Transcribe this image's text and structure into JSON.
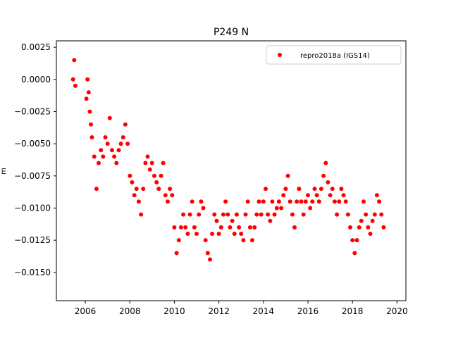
{
  "chart_data": {
    "type": "scatter",
    "title": "P249 N",
    "xlabel": "",
    "ylabel": "m",
    "xlim": [
      2004.7,
      2020.4
    ],
    "ylim": [
      -0.0172,
      0.003
    ],
    "x_ticks": [
      2006,
      2008,
      2010,
      2012,
      2014,
      2016,
      2018,
      2020
    ],
    "x_tick_labels": [
      "2006",
      "2008",
      "2010",
      "2012",
      "2014",
      "2016",
      "2018",
      "2020"
    ],
    "y_ticks": [
      0.0025,
      0.0,
      -0.0025,
      -0.005,
      -0.0075,
      -0.01,
      -0.0125,
      -0.015
    ],
    "y_tick_labels": [
      "0.0025",
      "0.0000",
      "−0.0025",
      "−0.0050",
      "−0.0075",
      "−0.0100",
      "−0.0125",
      "−0.0150"
    ],
    "grid": false,
    "legend_position": "upper-right",
    "series": [
      {
        "name": "repro2018a (IGS14)",
        "color": "#ff0000",
        "marker": "circle",
        "x": [
          2005.45,
          2005.5,
          2005.55,
          2006.05,
          2006.1,
          2006.15,
          2006.2,
          2006.25,
          2006.3,
          2006.4,
          2006.5,
          2006.6,
          2006.7,
          2006.8,
          2006.9,
          2007.0,
          2007.1,
          2007.2,
          2007.3,
          2007.4,
          2007.5,
          2007.6,
          2007.7,
          2007.8,
          2007.9,
          2008.0,
          2008.1,
          2008.2,
          2008.3,
          2008.4,
          2008.5,
          2008.6,
          2008.7,
          2008.8,
          2008.9,
          2009.0,
          2009.1,
          2009.2,
          2009.3,
          2009.4,
          2009.5,
          2009.6,
          2009.7,
          2009.8,
          2009.9,
          2010.0,
          2010.1,
          2010.2,
          2010.3,
          2010.4,
          2010.5,
          2010.6,
          2010.7,
          2010.8,
          2010.9,
          2011.0,
          2011.1,
          2011.2,
          2011.3,
          2011.4,
          2011.5,
          2011.6,
          2011.7,
          2011.8,
          2011.9,
          2012.0,
          2012.1,
          2012.2,
          2012.3,
          2012.4,
          2012.5,
          2012.6,
          2012.7,
          2012.8,
          2012.9,
          2013.0,
          2013.1,
          2013.2,
          2013.3,
          2013.4,
          2013.5,
          2013.6,
          2013.7,
          2013.8,
          2013.9,
          2014.0,
          2014.1,
          2014.2,
          2014.3,
          2014.4,
          2014.5,
          2014.6,
          2014.7,
          2014.8,
          2014.9,
          2015.0,
          2015.1,
          2015.2,
          2015.3,
          2015.4,
          2015.5,
          2015.6,
          2015.7,
          2015.8,
          2015.9,
          2016.0,
          2016.1,
          2016.2,
          2016.3,
          2016.4,
          2016.5,
          2016.6,
          2016.7,
          2016.8,
          2016.9,
          2017.0,
          2017.1,
          2017.2,
          2017.3,
          2017.4,
          2017.5,
          2017.6,
          2017.7,
          2017.8,
          2017.9,
          2018.0,
          2018.1,
          2018.2,
          2018.3,
          2018.4,
          2018.5,
          2018.6,
          2018.7,
          2018.8,
          2018.9,
          2019.0,
          2019.1,
          2019.2,
          2019.3,
          2019.4
        ],
        "y": [
          0.0,
          0.0015,
          -0.0005,
          -0.0015,
          0.0,
          -0.001,
          -0.0025,
          -0.0035,
          -0.0045,
          -0.006,
          -0.0085,
          -0.0065,
          -0.0055,
          -0.006,
          -0.0045,
          -0.005,
          -0.003,
          -0.0055,
          -0.006,
          -0.0065,
          -0.0055,
          -0.005,
          -0.0045,
          -0.0035,
          -0.005,
          -0.0075,
          -0.008,
          -0.009,
          -0.0085,
          -0.0095,
          -0.0105,
          -0.0085,
          -0.0065,
          -0.006,
          -0.007,
          -0.0065,
          -0.0075,
          -0.008,
          -0.0085,
          -0.0075,
          -0.0065,
          -0.009,
          -0.0095,
          -0.0085,
          -0.009,
          -0.0115,
          -0.0135,
          -0.0125,
          -0.0115,
          -0.0105,
          -0.0115,
          -0.012,
          -0.0105,
          -0.0095,
          -0.0115,
          -0.012,
          -0.0105,
          -0.0095,
          -0.01,
          -0.0125,
          -0.0135,
          -0.014,
          -0.012,
          -0.0105,
          -0.011,
          -0.012,
          -0.0115,
          -0.0105,
          -0.0095,
          -0.0105,
          -0.0115,
          -0.011,
          -0.012,
          -0.0105,
          -0.0115,
          -0.012,
          -0.0125,
          -0.0105,
          -0.0095,
          -0.0115,
          -0.0125,
          -0.0115,
          -0.0105,
          -0.0095,
          -0.0105,
          -0.0095,
          -0.0085,
          -0.0105,
          -0.011,
          -0.0095,
          -0.0105,
          -0.01,
          -0.0095,
          -0.01,
          -0.009,
          -0.0085,
          -0.0075,
          -0.0095,
          -0.0105,
          -0.0115,
          -0.0095,
          -0.0085,
          -0.0095,
          -0.0105,
          -0.0095,
          -0.009,
          -0.01,
          -0.0095,
          -0.0085,
          -0.009,
          -0.0095,
          -0.0085,
          -0.0075,
          -0.0065,
          -0.008,
          -0.009,
          -0.0085,
          -0.0095,
          -0.0105,
          -0.0095,
          -0.0085,
          -0.009,
          -0.0095,
          -0.0105,
          -0.0115,
          -0.0125,
          -0.0135,
          -0.0125,
          -0.0115,
          -0.011,
          -0.0095,
          -0.0105,
          -0.0115,
          -0.012,
          -0.011,
          -0.0105,
          -0.009,
          -0.0095,
          -0.0105,
          -0.0115
        ]
      }
    ]
  }
}
